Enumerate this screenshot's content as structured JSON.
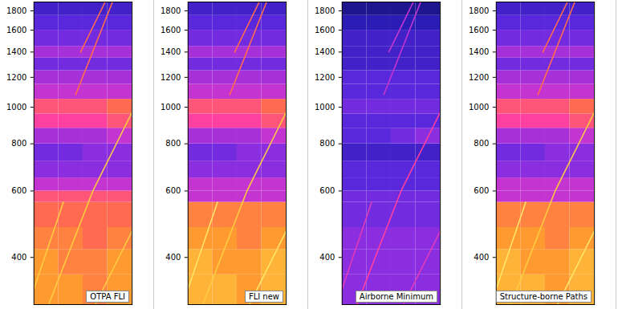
{
  "chart_data": [
    {
      "type": "heatmap",
      "title": "OTPA FLI",
      "log": "y",
      "tick_labels": "y",
      "xlim": [
        0,
        4
      ],
      "ylim": [
        300,
        1900
      ],
      "yticks": [
        400,
        600,
        800,
        1000,
        1200,
        1400,
        1600,
        1800
      ],
      "zlim": [
        0,
        10
      ],
      "freq_edges": [
        300,
        360,
        420,
        480,
        560,
        600,
        650,
        720,
        800,
        880,
        960,
        1050,
        1150,
        1250,
        1350,
        1450,
        1600,
        1750,
        1900
      ],
      "cells": [
        [
          8,
          8,
          7.5,
          8
        ],
        [
          8,
          7.5,
          7.5,
          8
        ],
        [
          7.5,
          7.5,
          7,
          7.5
        ],
        [
          7,
          7,
          7,
          7
        ],
        [
          6.5,
          6.5,
          6.5,
          6.5
        ],
        [
          5,
          5,
          5,
          5
        ],
        [
          4,
          4,
          4,
          4
        ],
        [
          3.5,
          3.5,
          4,
          4
        ],
        [
          4.5,
          4.5,
          4.5,
          5
        ],
        [
          6,
          6,
          6,
          6.5
        ],
        [
          6.5,
          6.5,
          6.5,
          7
        ],
        [
          5,
          5,
          5,
          5
        ],
        [
          4.5,
          4.5,
          4.5,
          4.5
        ],
        [
          3.5,
          3.5,
          3.5,
          3.5
        ],
        [
          4.5,
          4.5,
          4.5,
          4.5
        ],
        [
          3.5,
          3.5,
          3.5,
          3.5
        ],
        [
          3,
          3,
          3,
          3
        ],
        [
          2.5,
          2.5,
          2.5,
          2.5
        ]
      ],
      "lines": [
        {
          "level": 9,
          "x": [
            0.6,
            2.4,
            4
          ],
          "y": [
            300,
            600,
            970
          ]
        },
        {
          "level": 7,
          "x": [
            1.7,
            3.2
          ],
          "y": [
            1080,
            1900
          ]
        },
        {
          "level": 7,
          "x": [
            1.9,
            2.9
          ],
          "y": [
            1400,
            1900
          ]
        },
        {
          "level": 9,
          "x": [
            0,
            1.2
          ],
          "y": [
            330,
            560
          ]
        },
        {
          "level": 9,
          "x": [
            2.5,
            4
          ],
          "y": [
            300,
            470
          ]
        }
      ]
    },
    {
      "type": "heatmap",
      "title": "FLI new",
      "log": "y",
      "tick_labels": "y",
      "xlim": [
        0,
        4
      ],
      "ylim": [
        300,
        1900
      ],
      "yticks": [
        400,
        600,
        800,
        1000,
        1200,
        1400,
        1600,
        1800
      ],
      "zlim": [
        0,
        10
      ],
      "freq_edges": [
        300,
        360,
        420,
        480,
        560,
        600,
        650,
        720,
        800,
        880,
        960,
        1050,
        1150,
        1250,
        1350,
        1450,
        1600,
        1750,
        1900
      ],
      "cells": [
        [
          8.5,
          8.5,
          8,
          8.5
        ],
        [
          8.5,
          8,
          8,
          8.5
        ],
        [
          8,
          8,
          7.5,
          8
        ],
        [
          7.5,
          7.5,
          7.5,
          7.5
        ],
        [
          5,
          5,
          5,
          5
        ],
        [
          5,
          5,
          5,
          5
        ],
        [
          4,
          4,
          4,
          4
        ],
        [
          3.5,
          3.5,
          4,
          4
        ],
        [
          4.5,
          4.5,
          4.5,
          5
        ],
        [
          6,
          6,
          6,
          6.5
        ],
        [
          6.5,
          6.5,
          6.5,
          7
        ],
        [
          5,
          5,
          5,
          5
        ],
        [
          4.5,
          4.5,
          4.5,
          4.5
        ],
        [
          3.5,
          3.5,
          3.5,
          3.5
        ],
        [
          4.5,
          4.5,
          4.5,
          4.5
        ],
        [
          3.5,
          3.5,
          3.5,
          3.5
        ],
        [
          3,
          3,
          3,
          3
        ],
        [
          2.5,
          2.5,
          2.5,
          2.5
        ]
      ],
      "lines": [
        {
          "level": 9,
          "x": [
            0.6,
            2.4,
            4
          ],
          "y": [
            300,
            600,
            970
          ]
        },
        {
          "level": 7,
          "x": [
            1.7,
            3.2
          ],
          "y": [
            1080,
            1900
          ]
        },
        {
          "level": 7,
          "x": [
            1.9,
            2.9
          ],
          "y": [
            1400,
            1900
          ]
        },
        {
          "level": 9.5,
          "x": [
            0,
            1.2
          ],
          "y": [
            330,
            560
          ]
        },
        {
          "level": 9.5,
          "x": [
            2.5,
            4
          ],
          "y": [
            300,
            470
          ]
        }
      ]
    },
    {
      "type": "heatmap",
      "title": "Airborne Minimum",
      "log": "y",
      "tick_labels": "y",
      "xlim": [
        0,
        4
      ],
      "ylim": [
        300,
        1900
      ],
      "yticks": [
        400,
        600,
        800,
        1000,
        1200,
        1400,
        1600,
        1800
      ],
      "zlim": [
        0,
        10
      ],
      "freq_edges": [
        300,
        360,
        420,
        480,
        560,
        600,
        650,
        720,
        800,
        880,
        960,
        1050,
        1150,
        1250,
        1350,
        1450,
        1600,
        1750,
        1900
      ],
      "cells": [
        [
          4,
          4,
          4,
          4
        ],
        [
          4,
          4,
          4,
          4
        ],
        [
          4,
          4,
          4,
          4
        ],
        [
          3.5,
          3.5,
          3.5,
          3.5
        ],
        [
          3.5,
          3.5,
          3.5,
          3.5
        ],
        [
          3,
          3,
          3,
          3
        ],
        [
          3,
          3,
          3,
          3
        ],
        [
          2.5,
          2.5,
          2.5,
          2.5
        ],
        [
          3,
          3,
          3.5,
          4
        ],
        [
          3,
          3,
          3,
          3
        ],
        [
          3.5,
          3.5,
          3.5,
          3.5
        ],
        [
          3,
          3,
          3,
          3
        ],
        [
          3,
          3,
          3,
          3
        ],
        [
          2.5,
          2.5,
          2.5,
          2.5
        ],
        [
          2.5,
          2.5,
          2.5,
          2.5
        ],
        [
          2.5,
          2.5,
          2.5,
          2.5
        ],
        [
          2,
          2,
          2,
          2
        ],
        [
          1.5,
          1.5,
          1.5,
          1.5
        ]
      ],
      "lines": [
        {
          "level": 6,
          "x": [
            0.6,
            2.4,
            4
          ],
          "y": [
            300,
            600,
            970
          ]
        },
        {
          "level": 5,
          "x": [
            1.7,
            3.2
          ],
          "y": [
            1080,
            1900
          ]
        },
        {
          "level": 5,
          "x": [
            1.9,
            2.9
          ],
          "y": [
            1400,
            1900
          ]
        },
        {
          "level": 5.5,
          "x": [
            0,
            1.2
          ],
          "y": [
            330,
            560
          ]
        },
        {
          "level": 5.5,
          "x": [
            2.5,
            4
          ],
          "y": [
            300,
            470
          ]
        }
      ]
    },
    {
      "type": "heatmap",
      "title": "Structure-borne Paths",
      "log": "y",
      "tick_labels": "y",
      "xlim": [
        0,
        4
      ],
      "ylim": [
        300,
        1900
      ],
      "yticks": [
        400,
        600,
        800,
        1000,
        1200,
        1400,
        1600,
        1800
      ],
      "zlim": [
        0,
        10
      ],
      "freq_edges": [
        300,
        360,
        420,
        480,
        560,
        600,
        650,
        720,
        800,
        880,
        960,
        1050,
        1150,
        1250,
        1350,
        1450,
        1600,
        1750,
        1900
      ],
      "cells": [
        [
          8.5,
          8.5,
          8,
          8.5
        ],
        [
          8.5,
          8,
          8,
          8.5
        ],
        [
          8,
          8,
          7.5,
          8
        ],
        [
          7.5,
          7.5,
          7.5,
          7.5
        ],
        [
          5,
          5,
          5,
          5
        ],
        [
          5,
          5,
          5,
          5
        ],
        [
          4,
          4,
          4,
          4
        ],
        [
          3.5,
          3.5,
          4,
          4
        ],
        [
          4.5,
          4.5,
          4.5,
          5
        ],
        [
          6,
          6,
          6,
          6.5
        ],
        [
          6.5,
          6.5,
          6.5,
          7
        ],
        [
          5,
          5,
          5,
          5
        ],
        [
          4.5,
          4.5,
          4.5,
          4.5
        ],
        [
          3.5,
          3.5,
          3.5,
          3.5
        ],
        [
          4.5,
          4.5,
          4.5,
          4.5
        ],
        [
          3.5,
          3.5,
          3.5,
          3.5
        ],
        [
          3,
          3,
          3,
          3
        ],
        [
          2.5,
          2.5,
          2.5,
          2.5
        ]
      ],
      "lines": [
        {
          "level": 9,
          "x": [
            0.6,
            2.4,
            4
          ],
          "y": [
            300,
            600,
            970
          ]
        },
        {
          "level": 7,
          "x": [
            1.7,
            3.2
          ],
          "y": [
            1080,
            1900
          ]
        },
        {
          "level": 7,
          "x": [
            1.9,
            2.9
          ],
          "y": [
            1400,
            1900
          ]
        },
        {
          "level": 9.5,
          "x": [
            0,
            1.2
          ],
          "y": [
            330,
            560
          ]
        },
        {
          "level": 9.5,
          "x": [
            2.5,
            4
          ],
          "y": [
            300,
            470
          ]
        }
      ]
    }
  ]
}
